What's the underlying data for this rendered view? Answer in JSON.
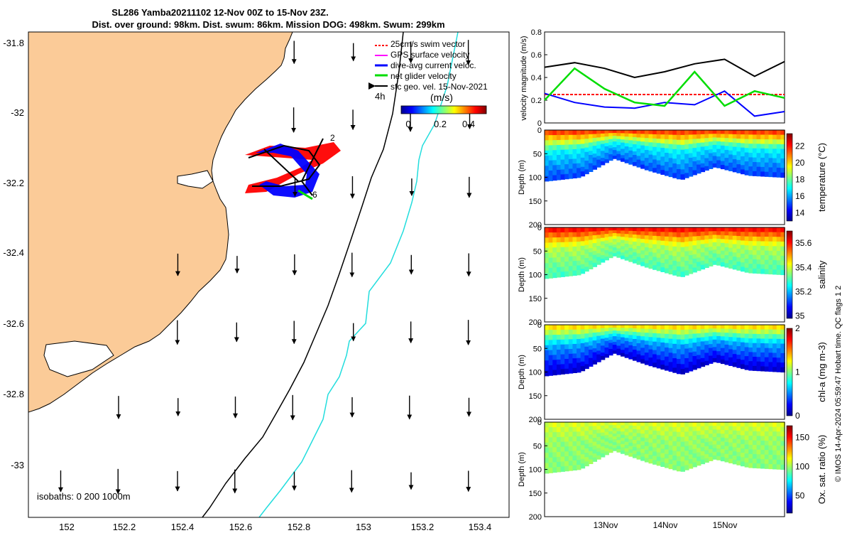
{
  "title": {
    "line1": "SL286 Yamba20211102 12-Nov 00Z to 15-Nov 23Z.",
    "line2": "Dist. over ground: 98km. Dist. swum: 86km. Mission DOG: 498km. Swum: 299km"
  },
  "colors": {
    "land": "#fbcb98",
    "swim_vector": "#ff0000",
    "gps_velocity": "#ff00ff",
    "dive_current": "#0000ff",
    "net_velocity": "#00dd00",
    "geo_velocity": "#000000",
    "isobath_200": "#000000",
    "isobath_1000": "#22dddd"
  },
  "map": {
    "legend": [
      {
        "label": "25cm/s swim vector",
        "color": "#ff0000"
      },
      {
        "label": "GPS surface velocity",
        "color": "#ff00ff"
      },
      {
        "label": "dive-avg current veloc.",
        "color": "#0000ff"
      },
      {
        "label": "net glider velocity",
        "color": "#00dd00"
      },
      {
        "label": "sfc geo. vel. 15-Nov-2021",
        "color": "#000000"
      }
    ],
    "interval_label": "4h",
    "colorbar_unit": "(m/s)",
    "colorbar_ticks": [
      "0",
      "0.2",
      "0.4"
    ],
    "track_labels": [
      "2",
      "6"
    ],
    "isobath_label": "isobaths: 0   200  1000m",
    "lat_ticks": [
      "-31.8",
      "-32",
      "-32.2",
      "-32.4",
      "-32.6",
      "-32.8",
      "-33"
    ],
    "lon_ticks": [
      "152",
      "152.2",
      "152.4",
      "152.6",
      "152.8",
      "153",
      "153.2",
      "153.4"
    ]
  },
  "chart_data": [
    {
      "type": "line",
      "title": "velocity magnitude",
      "ylabel": "velocity magnitude (m/s)",
      "ylim": [
        0,
        0.8
      ],
      "yticks": [
        "0",
        "0.2",
        "0.4",
        "0.6",
        "0.8"
      ],
      "x_days": [
        0,
        0.5,
        1,
        1.5,
        2,
        2.5,
        3,
        3.5,
        4
      ],
      "series": [
        {
          "name": "geostrophic",
          "color": "#000000",
          "values": [
            0.49,
            0.53,
            0.48,
            0.4,
            0.45,
            0.52,
            0.56,
            0.41,
            0.54
          ]
        },
        {
          "name": "25cm/s swim",
          "color": "#ff0000",
          "values": [
            0.25,
            0.25,
            0.25,
            0.25,
            0.25,
            0.25,
            0.25,
            0.25,
            0.25
          ]
        },
        {
          "name": "dive-avg current",
          "color": "#0000ff",
          "values": [
            0.26,
            0.18,
            0.14,
            0.13,
            0.18,
            0.16,
            0.28,
            0.06,
            0.1
          ]
        },
        {
          "name": "net glider velocity",
          "color": "#00dd00",
          "values": [
            0.2,
            0.48,
            0.3,
            0.18,
            0.15,
            0.45,
            0.15,
            0.28,
            0.22
          ]
        }
      ]
    },
    {
      "type": "heatmap",
      "name": "temperature",
      "ylabel": "Depth (m)",
      "yticks": [
        "0",
        "50",
        "100",
        "150",
        "200"
      ],
      "cbar_label": "temperature (°C)",
      "cbar_ticks": [
        "14",
        "16",
        "18",
        "20",
        "22"
      ],
      "cbar_range": [
        13,
        23.5
      ],
      "surface_value": 21.5,
      "bottom_value": 17,
      "deep_value": 15,
      "max_depth_profile": [
        108,
        100,
        60,
        85,
        105,
        78,
        96,
        100
      ]
    },
    {
      "type": "heatmap",
      "name": "salinity",
      "ylabel": "Depth (m)",
      "yticks": [
        "0",
        "50",
        "100",
        "150",
        "200"
      ],
      "cbar_label": "salinity",
      "cbar_ticks": [
        "35",
        "35.2",
        "35.4",
        "35.6"
      ],
      "cbar_range": [
        34.98,
        35.7
      ],
      "surface_value": 35.6,
      "bottom_value": 35.38,
      "deep_value": 35.3,
      "max_depth_profile": [
        108,
        100,
        60,
        85,
        105,
        78,
        96,
        100
      ]
    },
    {
      "type": "heatmap",
      "name": "chl-a",
      "ylabel": "Depth (m)",
      "yticks": [
        "0",
        "50",
        "100",
        "150",
        "200"
      ],
      "cbar_label": "chl-a (mg m-3)",
      "cbar_ticks": [
        "0",
        "1",
        "2"
      ],
      "cbar_range": [
        0,
        2
      ],
      "surface_value": 1.3,
      "bottom_value": 0.6,
      "deep_value": 0.15,
      "max_depth_profile": [
        108,
        100,
        60,
        85,
        105,
        78,
        96,
        100
      ]
    },
    {
      "type": "heatmap",
      "name": "oxygen",
      "ylabel": "Depth (m)",
      "yticks": [
        "0",
        "50",
        "100",
        "150",
        "200"
      ],
      "cbar_label": "Ox. sat. ratio (%)",
      "cbar_ticks": [
        "50",
        "100",
        "150"
      ],
      "cbar_range": [
        20,
        170
      ],
      "surface_value": 108,
      "bottom_value": 98,
      "deep_value": 96,
      "max_depth_profile": [
        108,
        100,
        60,
        85,
        105,
        78,
        96,
        100
      ]
    }
  ],
  "time_axis": {
    "ticks": [
      "13Nov",
      "14Nov",
      "15Nov"
    ]
  },
  "footer": "© IMOS 14-Apr-2024 05:59:47 Hobart time. QC flags 1  2"
}
